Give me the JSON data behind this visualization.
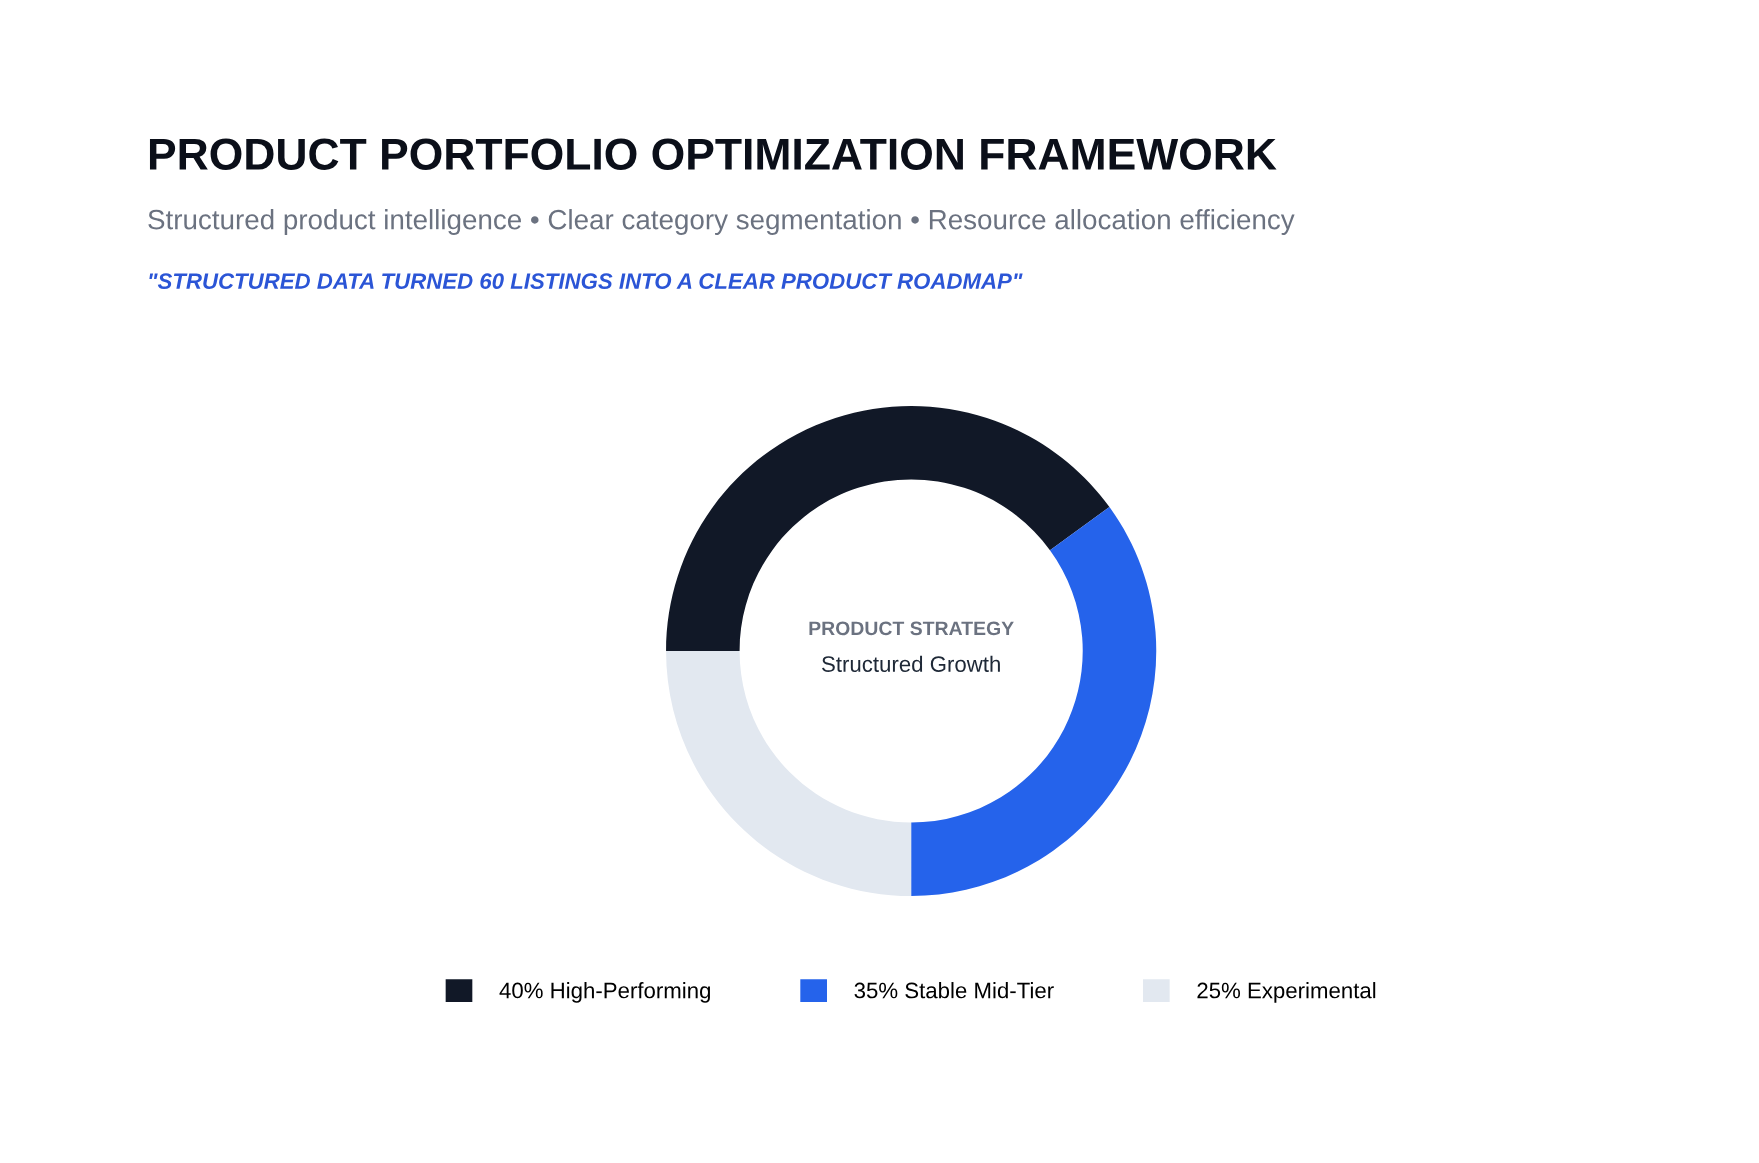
{
  "chart_data": {
    "type": "donut",
    "title": "PRODUCT PORTFOLIO OPTIMIZATION FRAMEWORK",
    "subtitle": "Structured product intelligence • Clear category segmentation • Resource allocation efficiency",
    "annotations": [
      "\"STRUCTURED DATA TURNED 60 LISTINGS INTO A CLEAR PRODUCT ROADMAP\"",
      "PRODUCT STRATEGY",
      "Structured Growth"
    ],
    "categories": [
      "High-Performing",
      "Stable Mid-Tier",
      "Experimental"
    ],
    "values": [
      40,
      35,
      25
    ],
    "value_labels": [
      "40%",
      "35%",
      "25%"
    ],
    "colors": [
      "#111827",
      "#2563eb",
      "#e2e8f0"
    ],
    "legend": "bottom"
  }
}
